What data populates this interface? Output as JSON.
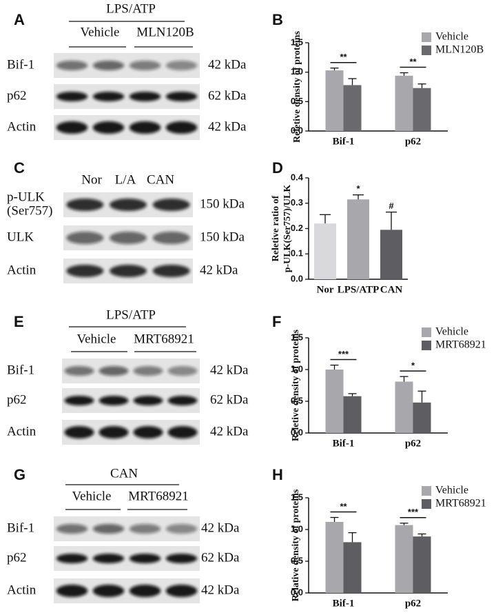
{
  "panels": [
    {
      "label": "A",
      "header": "LPS/ATP",
      "groups": [
        "Vehicle",
        "MLN120B"
      ],
      "rows": [
        {
          "name": [
            "Bif-1"
          ],
          "size": "42 kDa"
        },
        {
          "name": [
            "p62"
          ],
          "size": "62 kDa"
        },
        {
          "name": [
            "Actin"
          ],
          "size": "42 kDa"
        }
      ]
    },
    {
      "label": "C",
      "lanes": [
        "Nor",
        "L/A",
        "CAN"
      ],
      "rows": [
        {
          "name": [
            "p-ULK",
            "(Ser757)"
          ],
          "size": "150 kDa"
        },
        {
          "name": [
            "ULK"
          ],
          "size": "150 kDa"
        },
        {
          "name": [
            "Actin"
          ],
          "size": "42 kDa"
        }
      ]
    },
    {
      "label": "E",
      "header": "LPS/ATP",
      "groups": [
        "Vehicle",
        "MRT68921"
      ],
      "rows": [
        {
          "name": [
            "Bif-1"
          ],
          "size": "42 kDa"
        },
        {
          "name": [
            "p62"
          ],
          "size": "62 kDa"
        },
        {
          "name": [
            "Actin"
          ],
          "size": "42 kDa"
        }
      ]
    },
    {
      "label": "G",
      "header": "CAN",
      "groups": [
        "Vehicle",
        "MRT68921"
      ],
      "rows": [
        {
          "name": [
            "Bif-1"
          ],
          "size": "42 kDa"
        },
        {
          "name": [
            "p62"
          ],
          "size": "62 kDa"
        },
        {
          "name": [
            "Actin"
          ],
          "size": "42 kDa"
        }
      ]
    }
  ],
  "chart_data": [
    {
      "type": "bar",
      "label": "B",
      "ylabel": [
        "Reletive density of proteins"
      ],
      "categories": [
        "Bif-1",
        "p62"
      ],
      "series": [
        {
          "name": "Vehicle",
          "color": "#a7a7ac",
          "values": [
            1.03,
            0.94
          ],
          "errors": [
            0.04,
            0.05
          ]
        },
        {
          "name": "MLN120B",
          "color": "#6a6a6e",
          "values": [
            0.78,
            0.73
          ],
          "errors": [
            0.11,
            0.07
          ]
        }
      ],
      "ylim": [
        0,
        1.5
      ],
      "yticks": [
        {
          "value": 0,
          "label": "0.0"
        },
        0.5,
        {
          "value": 1,
          "label": "1.0"
        },
        1.5
      ],
      "annotations": [
        {
          "category": "Bif-1",
          "text": "**"
        },
        {
          "category": "p62",
          "text": "**"
        }
      ],
      "legend": "upper right"
    },
    {
      "type": "bar",
      "label": "D",
      "ylabel": [
        "Reletive ratio of",
        "p-ULK(Ser757)/ULK"
      ],
      "categories": [
        "Nor",
        "LPS/ATP",
        "CAN"
      ],
      "values": [
        0.22,
        0.315,
        0.195
      ],
      "errors": [
        0.035,
        0.018,
        0.07
      ],
      "colors": [
        "#d9d9dc",
        "#a7a7ac",
        "#5e5e62"
      ],
      "ylim": [
        0,
        0.4
      ],
      "yticks": [
        {
          "value": 0,
          "label": "0.0"
        },
        0.1,
        0.2,
        0.3,
        0.4
      ],
      "annotations": [
        {
          "category": "LPS/ATP",
          "text": "*"
        },
        {
          "category": "CAN",
          "text": "#"
        }
      ]
    },
    {
      "type": "bar",
      "label": "F",
      "ylabel": [
        "Reletive density of proteins"
      ],
      "categories": [
        "Bif-1",
        "p62"
      ],
      "series": [
        {
          "name": "Vehicle",
          "color": "#a7a7ac",
          "values": [
            1.0,
            0.81
          ],
          "errors": [
            0.07,
            0.08
          ]
        },
        {
          "name": "MRT68921",
          "color": "#5e5e62",
          "values": [
            0.58,
            0.48
          ],
          "errors": [
            0.04,
            0.18
          ]
        }
      ],
      "ylim": [
        0,
        1.5
      ],
      "yticks": [
        {
          "value": 0,
          "label": "0.0"
        },
        0.5,
        {
          "value": 1,
          "label": "1.0"
        },
        1.5
      ],
      "annotations": [
        {
          "category": "Bif-1",
          "text": "***"
        },
        {
          "category": "p62",
          "text": "*"
        }
      ],
      "legend": "upper right"
    },
    {
      "type": "bar",
      "label": "H",
      "ylabel": [
        "Relative density of proteins"
      ],
      "categories": [
        "Bif-1",
        "p62"
      ],
      "series": [
        {
          "name": "Vehicle",
          "color": "#a7a7ac",
          "values": [
            1.12,
            1.07
          ],
          "errors": [
            0.07,
            0.03
          ]
        },
        {
          "name": "MRT68921",
          "color": "#5e5e62",
          "values": [
            0.8,
            0.89
          ],
          "errors": [
            0.15,
            0.04
          ]
        }
      ],
      "ylim": [
        0,
        1.5
      ],
      "yticks": [
        {
          "value": 0,
          "label": "0.0"
        },
        0.5,
        {
          "value": 1,
          "label": "1.0"
        },
        1.5
      ],
      "annotations": [
        {
          "category": "Bif-1",
          "text": "**"
        },
        {
          "category": "p62",
          "text": "***"
        }
      ],
      "legend": "upper right"
    }
  ]
}
